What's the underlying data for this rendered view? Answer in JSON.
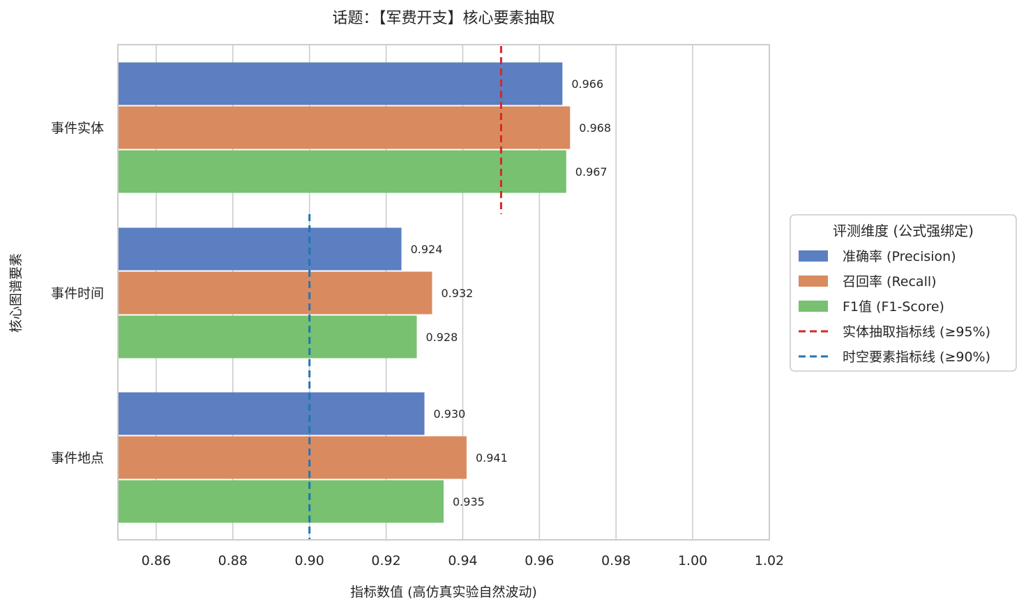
{
  "chart_data": {
    "type": "bar",
    "orientation": "horizontal",
    "title": "话题：【军费开支】核心要素抽取",
    "xlabel": "指标数值 (高仿真实验自然波动)",
    "ylabel": "核心图谱要素",
    "xlim": [
      0.85,
      1.02
    ],
    "x_ticks": [
      "0.86",
      "0.88",
      "0.90",
      "0.92",
      "0.94",
      "0.96",
      "0.98",
      "1.00",
      "1.02"
    ],
    "x_tick_values": [
      0.86,
      0.88,
      0.9,
      0.92,
      0.94,
      0.96,
      0.98,
      1.0,
      1.02
    ],
    "grid": "vertical",
    "categories": [
      "事件实体",
      "事件时间",
      "事件地点"
    ],
    "series": [
      {
        "name": "准确率 (Precision)",
        "color": "#5b7fc0",
        "values": [
          0.966,
          0.924,
          0.93
        ],
        "labels": [
          "0.966",
          "0.924",
          "0.930"
        ]
      },
      {
        "name": "召回率 (Recall)",
        "color": "#d98b5f",
        "values": [
          0.968,
          0.932,
          0.941
        ],
        "labels": [
          "0.968",
          "0.932",
          "0.941"
        ]
      },
      {
        "name": "F1值 (F1-Score)",
        "color": "#77c170",
        "values": [
          0.967,
          0.928,
          0.935
        ],
        "labels": [
          "0.967",
          "0.928",
          "0.935"
        ]
      }
    ],
    "reference_lines": [
      {
        "name": "实体抽取指标线 (≥95%)",
        "value": 0.95,
        "color": "#d62728",
        "style": "dashed",
        "applies_to": [
          "事件实体"
        ]
      },
      {
        "name": "时空要素指标线 (≥90%)",
        "value": 0.9,
        "color": "#1f77b4",
        "style": "dashed",
        "applies_to": [
          "事件时间",
          "事件地点"
        ]
      }
    ],
    "legend": {
      "title": "评测维度 (公式强绑定)",
      "placement": "right"
    }
  }
}
